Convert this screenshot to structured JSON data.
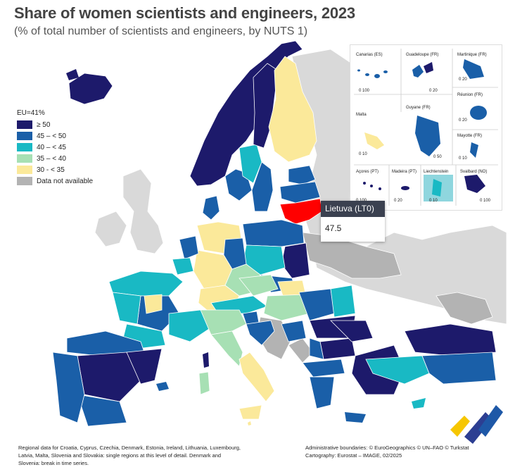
{
  "title": "Share of women scientists and engineers, 2023",
  "subtitle": "(% of total number of scientists and engineers, by NUTS 1)",
  "legend": {
    "eu_label": "EU=41%",
    "items": [
      {
        "label": "≥ 50",
        "color": "#1d1a6b"
      },
      {
        "label": "45 – < 50",
        "color": "#1a5fa8"
      },
      {
        "label": "40 – < 45",
        "color": "#19b9c4"
      },
      {
        "label": "35 – < 40",
        "color": "#a7e0b4"
      },
      {
        "label": "30 - < 35",
        "color": "#fbe99a"
      },
      {
        "label": "Data not available",
        "color": "#b3b3b3"
      }
    ]
  },
  "insets": {
    "canarias": "Canarias (ES)",
    "guadeloupe": "Guadeloupe (FR)",
    "martinique": "Martinique (FR)",
    "reunion": "Réunion (FR)",
    "malta": "Malta",
    "guyane": "Guyane (FR)",
    "mayotte": "Mayotte (FR)",
    "acores": "Açores (PT)",
    "madeira": "Madeira (PT)",
    "liechtenstein": "Liechtenstein",
    "svalbard": "Svalbard (NO)",
    "scale_0_100": "0    100",
    "scale_0_20": "0    20",
    "scale_0_10": "0    10",
    "scale_0_50": "0    50",
    "scale_0_100b": "0 100"
  },
  "tooltip": {
    "region": "Lietuva (LT0)",
    "value": "47.5"
  },
  "highlight_color": "#ff0000",
  "footer": {
    "note": "Regional data for Croatia, Cyprus, Czechia, Denmark, Estonia, Ireland, Lithuania, Luxembourg, Latvia, Malta, Slovenia and Slovakia: single regions at this level of detail. Denmark and Slovenia: break in time series.",
    "boundaries": "Administrative boundaries: © EuroGeographics © UN–FAO © Turkstat",
    "cartography": "Cartography: Eurostat – IMAGE, 02/2025"
  }
}
